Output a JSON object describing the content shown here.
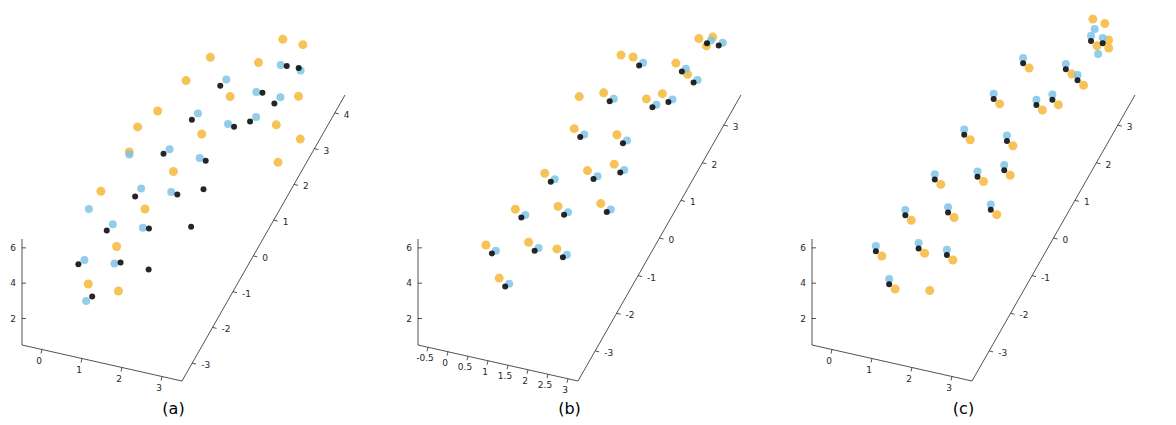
{
  "chart_data": [
    {
      "type": "scatter3d",
      "title": "(a)",
      "xlim": [
        -0.5,
        3.5
      ],
      "xticks": [
        0,
        1,
        2,
        3
      ],
      "ylim": [
        -3.5,
        4.5
      ],
      "yticks": [
        -3,
        -2,
        -1,
        0,
        1,
        2,
        3,
        4
      ],
      "zlim": [
        0.5,
        6.5
      ],
      "zticks": [
        2,
        4,
        6
      ],
      "series": [
        {
          "color": "#f6b93b",
          "x": [
            0.8,
            1.0,
            1.2,
            1.4,
            1.6,
            1.8,
            2.0,
            2.2,
            0.2,
            0.4,
            0.6,
            0.8,
            1.0,
            0.2,
            2.8,
            3.0,
            3.2,
            3.4,
            2.6,
            1.4
          ],
          "y": [
            -2.8,
            -1.8,
            -0.8,
            0.2,
            1.2,
            2.2,
            3.2,
            4.0,
            -1.0,
            0,
            1.0,
            2.0,
            2.8,
            0.8,
            2.5,
            3.2,
            1.8,
            2.5,
            4.2,
            -2.5
          ],
          "z": [
            3.2,
            3.4,
            3.6,
            3.8,
            4.0,
            4.2,
            4.2,
            4.0,
            4.5,
            4.8,
            5.2,
            5.0,
            4.8,
            4.5,
            2.5,
            2.8,
            2.0,
            2.0,
            3.5,
            2.5
          ]
        },
        {
          "color": "#7fc4e6",
          "x": [
            0.9,
            1.1,
            1.3,
            1.5,
            1.7,
            1.9,
            2.1,
            2.3,
            0.5,
            0.7,
            0.9,
            1.1,
            1.3,
            1.5,
            2.5,
            2.7,
            2.9,
            0.0,
            0.3
          ],
          "y": [
            -3.1,
            -2.1,
            -1.1,
            -0.1,
            0.9,
            1.9,
            2.9,
            3.7,
            -2.4,
            -1.4,
            -0.4,
            0.6,
            1.6,
            2.6,
            2.1,
            2.9,
            3.5,
            -1.2,
            0.2
          ],
          "z": [
            2.9,
            3.1,
            3.2,
            3.3,
            3.3,
            3.3,
            3.2,
            3.2,
            3.6,
            3.7,
            3.8,
            4.1,
            4.2,
            4.2,
            3.6,
            3.2,
            3.6,
            3.8,
            4.2
          ]
        },
        {
          "color": "#000000",
          "x": [
            1.0,
            1.2,
            1.4,
            1.6,
            1.8,
            2.0,
            2.2,
            2.4,
            0.4,
            0.6,
            0.8,
            1.0,
            1.2,
            1.4,
            2.4,
            2.6,
            2.8,
            2.0,
            2.2,
            1.8
          ],
          "y": [
            -3.0,
            -2.0,
            -1.0,
            0,
            1,
            2,
            3,
            3.8,
            -2.5,
            -1.5,
            -0.5,
            0.5,
            1.5,
            2.5,
            2.0,
            2.8,
            3.6,
            0.5,
            -0.5,
            -1.8
          ],
          "z": [
            3,
            3,
            3,
            3,
            3,
            3,
            3,
            3,
            3.5,
            3.5,
            3.5,
            4,
            4,
            4,
            3.5,
            3,
            3.5,
            2.5,
            2.5,
            2.5
          ]
        }
      ]
    },
    {
      "type": "scatter3d",
      "title": "(b)",
      "xlim": [
        -0.75,
        3.25
      ],
      "xticks": [
        -0.5,
        0,
        0.5,
        1,
        1.5,
        2,
        2.5,
        3
      ],
      "ylim": [
        -3.8,
        3.8
      ],
      "yticks": [
        -3,
        -2,
        -1,
        0,
        1,
        2,
        3
      ],
      "zlim": [
        0.5,
        6.5
      ],
      "zticks": [
        2,
        4,
        6
      ],
      "series": [
        {
          "color": "#f6b93b",
          "x": [
            0.85,
            1.05,
            1.25,
            1.45,
            1.65,
            1.85,
            2.05,
            2.25,
            0.25,
            0.45,
            0.65,
            0.85,
            1.05,
            1.25,
            2.25,
            2.45,
            2.65,
            1.85,
            2.05,
            1.65,
            0.6,
            1.0,
            2.6
          ],
          "y": [
            -3.0,
            -2.0,
            -1.0,
            0,
            1,
            2,
            3,
            3.7,
            -2.5,
            -1.5,
            -0.5,
            0.5,
            1.5,
            2.5,
            2.0,
            2.8,
            3.6,
            0.5,
            -0.5,
            -1.8,
            1.2,
            2.4,
            3.4
          ],
          "z": [
            3.4,
            3.4,
            3.4,
            3.4,
            3.4,
            3.4,
            3.4,
            3.4,
            3.9,
            3.9,
            3.9,
            4.4,
            4.4,
            4.4,
            3.9,
            3.4,
            3.9,
            2.9,
            2.9,
            2.9,
            4.6,
            4.6,
            3.8
          ]
        },
        {
          "color": "#7fc4e6",
          "x": [
            1.1,
            1.3,
            1.5,
            1.7,
            1.9,
            2.1,
            2.3,
            2.5,
            0.5,
            0.7,
            0.9,
            1.1,
            1.3,
            1.5,
            2.5,
            2.7,
            2.9,
            2.1,
            2.3,
            1.9
          ],
          "y": [
            -3.0,
            -2.0,
            -1.0,
            0,
            1,
            2,
            3,
            3.8,
            -2.5,
            -1.5,
            -0.5,
            0.5,
            1.5,
            2.5,
            2.0,
            2.8,
            3.6,
            0.5,
            -0.5,
            -1.8
          ],
          "z": [
            3.2,
            3.2,
            3.2,
            3.2,
            3.2,
            3.2,
            3.2,
            3.2,
            3.7,
            3.7,
            3.7,
            4.2,
            4.2,
            4.2,
            3.7,
            3.2,
            3.7,
            2.7,
            2.7,
            2.7
          ]
        },
        {
          "color": "#000000",
          "x": [
            1.0,
            1.2,
            1.4,
            1.6,
            1.8,
            2.0,
            2.2,
            2.4,
            0.4,
            0.6,
            0.8,
            1.0,
            1.2,
            1.4,
            2.4,
            2.6,
            2.8,
            2.0,
            2.2,
            1.8
          ],
          "y": [
            -3.0,
            -2.0,
            -1.0,
            0,
            1,
            2,
            3,
            3.8,
            -2.5,
            -1.5,
            -0.5,
            0.5,
            1.5,
            2.5,
            2.0,
            2.8,
            3.6,
            0.5,
            -0.5,
            -1.8
          ],
          "z": [
            3,
            3,
            3,
            3,
            3,
            3,
            3,
            3,
            3.5,
            3.5,
            3.5,
            4,
            4,
            4,
            3.5,
            3,
            3.5,
            2.5,
            2.5,
            2.5
          ]
        }
      ]
    },
    {
      "type": "scatter3d",
      "title": "(c)",
      "xlim": [
        -0.5,
        3.5
      ],
      "xticks": [
        0,
        1,
        2,
        3
      ],
      "ylim": [
        -3.8,
        3.8
      ],
      "yticks": [
        -3,
        -2,
        -1,
        0,
        1,
        2,
        3
      ],
      "zlim": [
        0.5,
        6.5
      ],
      "zticks": [
        2,
        4,
        6
      ],
      "series": [
        {
          "color": "#f6b93b",
          "x": [
            1.15,
            1.35,
            1.55,
            1.75,
            1.95,
            2.15,
            2.35,
            2.55,
            0.55,
            0.75,
            0.95,
            1.15,
            1.35,
            1.55,
            2.55,
            2.75,
            2.95,
            2.15,
            2.35,
            1.95,
            2.8,
            3.0,
            2.5,
            1.8
          ],
          "y": [
            -3.0,
            -2.0,
            -1.0,
            0,
            1,
            2,
            3,
            3.8,
            -2.5,
            -1.5,
            -0.5,
            0.5,
            1.5,
            2.5,
            2.0,
            2.8,
            3.6,
            0.5,
            -0.5,
            -1.8,
            3.7,
            3.5,
            3.7,
            -2.6
          ],
          "z": [
            2.8,
            2.8,
            2.8,
            2.8,
            2.8,
            2.8,
            2.8,
            2.8,
            3.3,
            3.3,
            3.3,
            3.8,
            3.8,
            3.8,
            3.3,
            2.8,
            3.3,
            2.3,
            2.3,
            2.3,
            4.4,
            4.0,
            4.5,
            2.2
          ]
        },
        {
          "color": "#7fc4e6",
          "x": [
            1.0,
            1.2,
            1.4,
            1.6,
            1.8,
            2.0,
            2.2,
            2.4,
            0.4,
            0.6,
            0.8,
            1.0,
            1.2,
            1.4,
            2.4,
            2.6,
            2.8,
            2.0,
            2.2,
            1.8,
            2.6,
            2.9
          ],
          "y": [
            -3.0,
            -2.0,
            -1.0,
            0,
            1,
            2,
            3,
            3.8,
            -2.5,
            -1.5,
            -0.5,
            0.5,
            1.5,
            2.5,
            2.0,
            2.8,
            3.6,
            0.5,
            -0.5,
            -1.8,
            3.6,
            3.2
          ],
          "z": [
            3.3,
            3.3,
            3.3,
            3.3,
            3.3,
            3.3,
            3.3,
            3.3,
            3.8,
            3.8,
            3.8,
            4.3,
            4.3,
            4.3,
            3.8,
            3.3,
            3.8,
            2.8,
            2.8,
            2.8,
            4.2,
            3.8
          ]
        },
        {
          "color": "#000000",
          "x": [
            1.0,
            1.2,
            1.4,
            1.6,
            1.8,
            2.0,
            2.2,
            2.4,
            0.4,
            0.6,
            0.8,
            1.0,
            1.2,
            1.4,
            2.4,
            2.6,
            2.8,
            2.0,
            2.2,
            1.8
          ],
          "y": [
            -3.0,
            -2.0,
            -1.0,
            0,
            1,
            2,
            3,
            3.8,
            -2.5,
            -1.5,
            -0.5,
            0.5,
            1.5,
            2.5,
            2.0,
            2.8,
            3.6,
            0.5,
            -0.5,
            -1.8
          ],
          "z": [
            3,
            3,
            3,
            3,
            3,
            3,
            3,
            3,
            3.5,
            3.5,
            3.5,
            4,
            4,
            4,
            3.5,
            3,
            3.5,
            2.5,
            2.5,
            2.5
          ]
        }
      ]
    }
  ]
}
